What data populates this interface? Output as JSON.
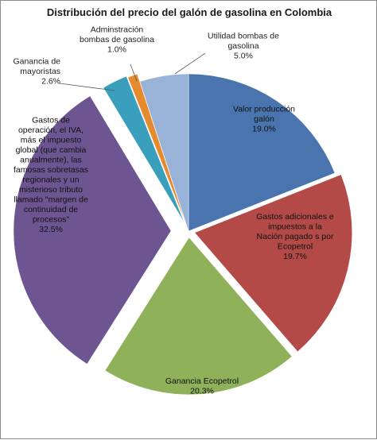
{
  "chart_data": {
    "type": "pie",
    "title": "Distribución del precio del galón de gasolina en Colombia",
    "slices": [
      {
        "name_lines": [
          "Valor producción",
          "galón"
        ],
        "value": 19.0,
        "label": "19.0%",
        "color": "#4a74ad"
      },
      {
        "name_lines": [
          "Gastos adicionales e",
          "impuestos a la",
          "Nación pagado s por",
          "Ecopetrol"
        ],
        "value": 19.7,
        "label": "19.7%",
        "color": "#b34a47"
      },
      {
        "name_lines": [
          "Ganancia Ecopetrol"
        ],
        "value": 20.3,
        "label": "20.3%",
        "color": "#8fb15a"
      },
      {
        "name_lines": [
          "Gastos de",
          "operación, el IVA,",
          "más el impuesto",
          "global (que cambia",
          "anualmente), las",
          "famosas sobretasas",
          "regionales y un",
          "misterioso tributo",
          "llamado \"margen de",
          "continuidad de",
          "procesos\""
        ],
        "value": 32.5,
        "label": "32.5%",
        "color": "#6d5592"
      },
      {
        "name_lines": [
          "Ganancia de",
          "mayoristas"
        ],
        "value": 2.6,
        "label": "2.6%",
        "color": "#3a9fbd"
      },
      {
        "name_lines": [
          "Adminstración",
          "bombas de gasolina"
        ],
        "value": 1.0,
        "label": "1.0%",
        "color": "#e58a2e"
      },
      {
        "name_lines": [
          "Utilidad bombas de",
          "gasolina"
        ],
        "value": 5.0,
        "label": "5.0%",
        "color": "#98b2d8"
      }
    ]
  }
}
